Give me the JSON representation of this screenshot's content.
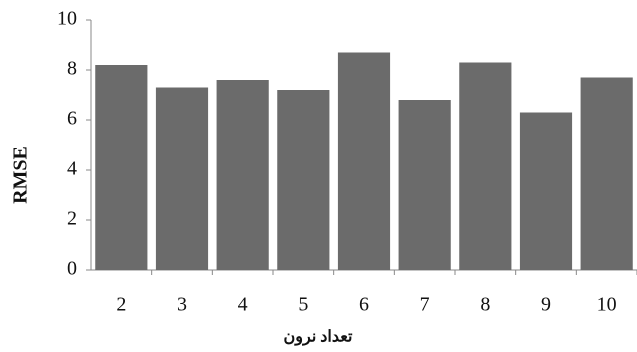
{
  "chart_data": {
    "type": "bar",
    "x_label": "تعداد نرون",
    "y_label": "RMSE",
    "categories": [
      "2",
      "3",
      "4",
      "5",
      "6",
      "7",
      "8",
      "9",
      "10"
    ],
    "values": [
      8.2,
      7.3,
      7.6,
      7.2,
      8.7,
      6.8,
      8.3,
      6.3,
      7.7
    ],
    "color": "#6b6b6b",
    "ylim": [
      0,
      10
    ],
    "yticks": [
      0,
      2,
      4,
      6,
      8,
      10
    ],
    "grid": false
  }
}
